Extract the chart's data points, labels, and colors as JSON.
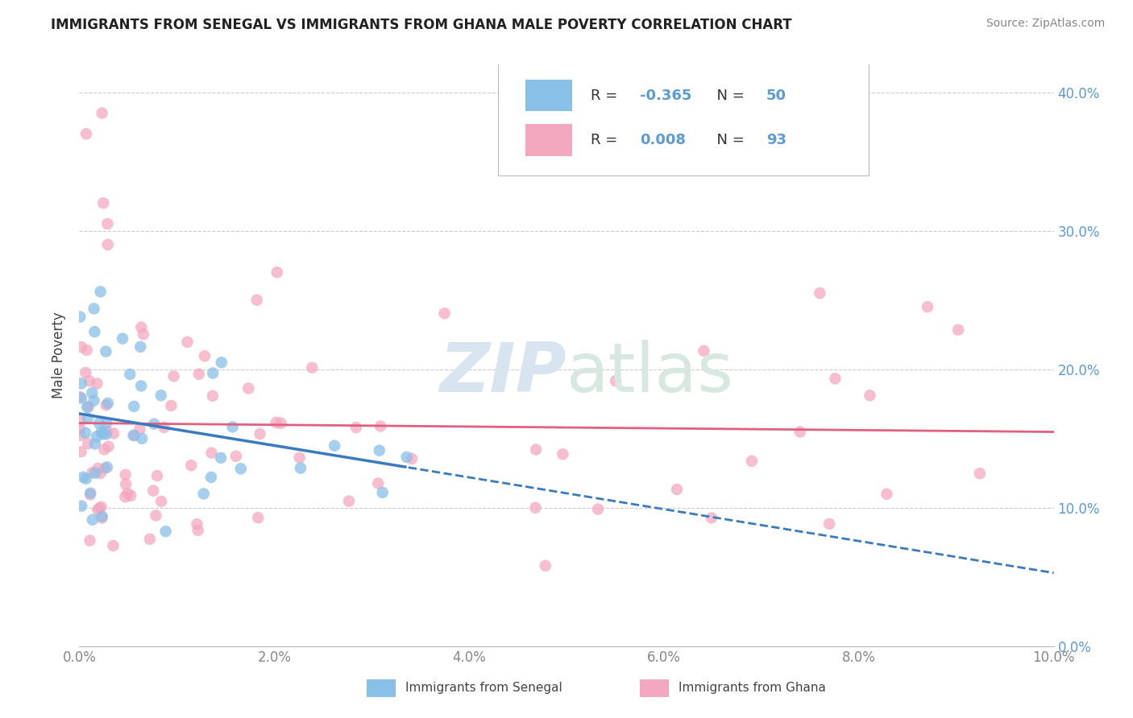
{
  "title": "IMMIGRANTS FROM SENEGAL VS IMMIGRANTS FROM GHANA MALE POVERTY CORRELATION CHART",
  "source": "Source: ZipAtlas.com",
  "ylabel": "Male Poverty",
  "legend_labels": [
    "Immigrants from Senegal",
    "Immigrants from Ghana"
  ],
  "r_senegal": -0.365,
  "n_senegal": 50,
  "r_ghana": 0.008,
  "n_ghana": 93,
  "xlim": [
    0.0,
    0.1
  ],
  "ylim": [
    0.0,
    0.42
  ],
  "xticks": [
    0.0,
    0.02,
    0.04,
    0.06,
    0.08,
    0.1
  ],
  "yticks": [
    0.0,
    0.1,
    0.2,
    0.3,
    0.4
  ],
  "color_senegal": "#89c0e8",
  "color_ghana": "#f4a8c0",
  "line_color_senegal": "#3a7abf",
  "line_color_ghana": "#e06080",
  "background_color": "#ffffff",
  "legend_r_color": "#5b9bd5",
  "legend_n_color": "#5b9bd5",
  "title_color": "#222222",
  "axis_label_color": "#444444",
  "tick_color": "#888888",
  "grid_color": "#cccccc",
  "watermark_zip_color": "#d8e4f0",
  "watermark_atlas_color": "#d8e8e0"
}
